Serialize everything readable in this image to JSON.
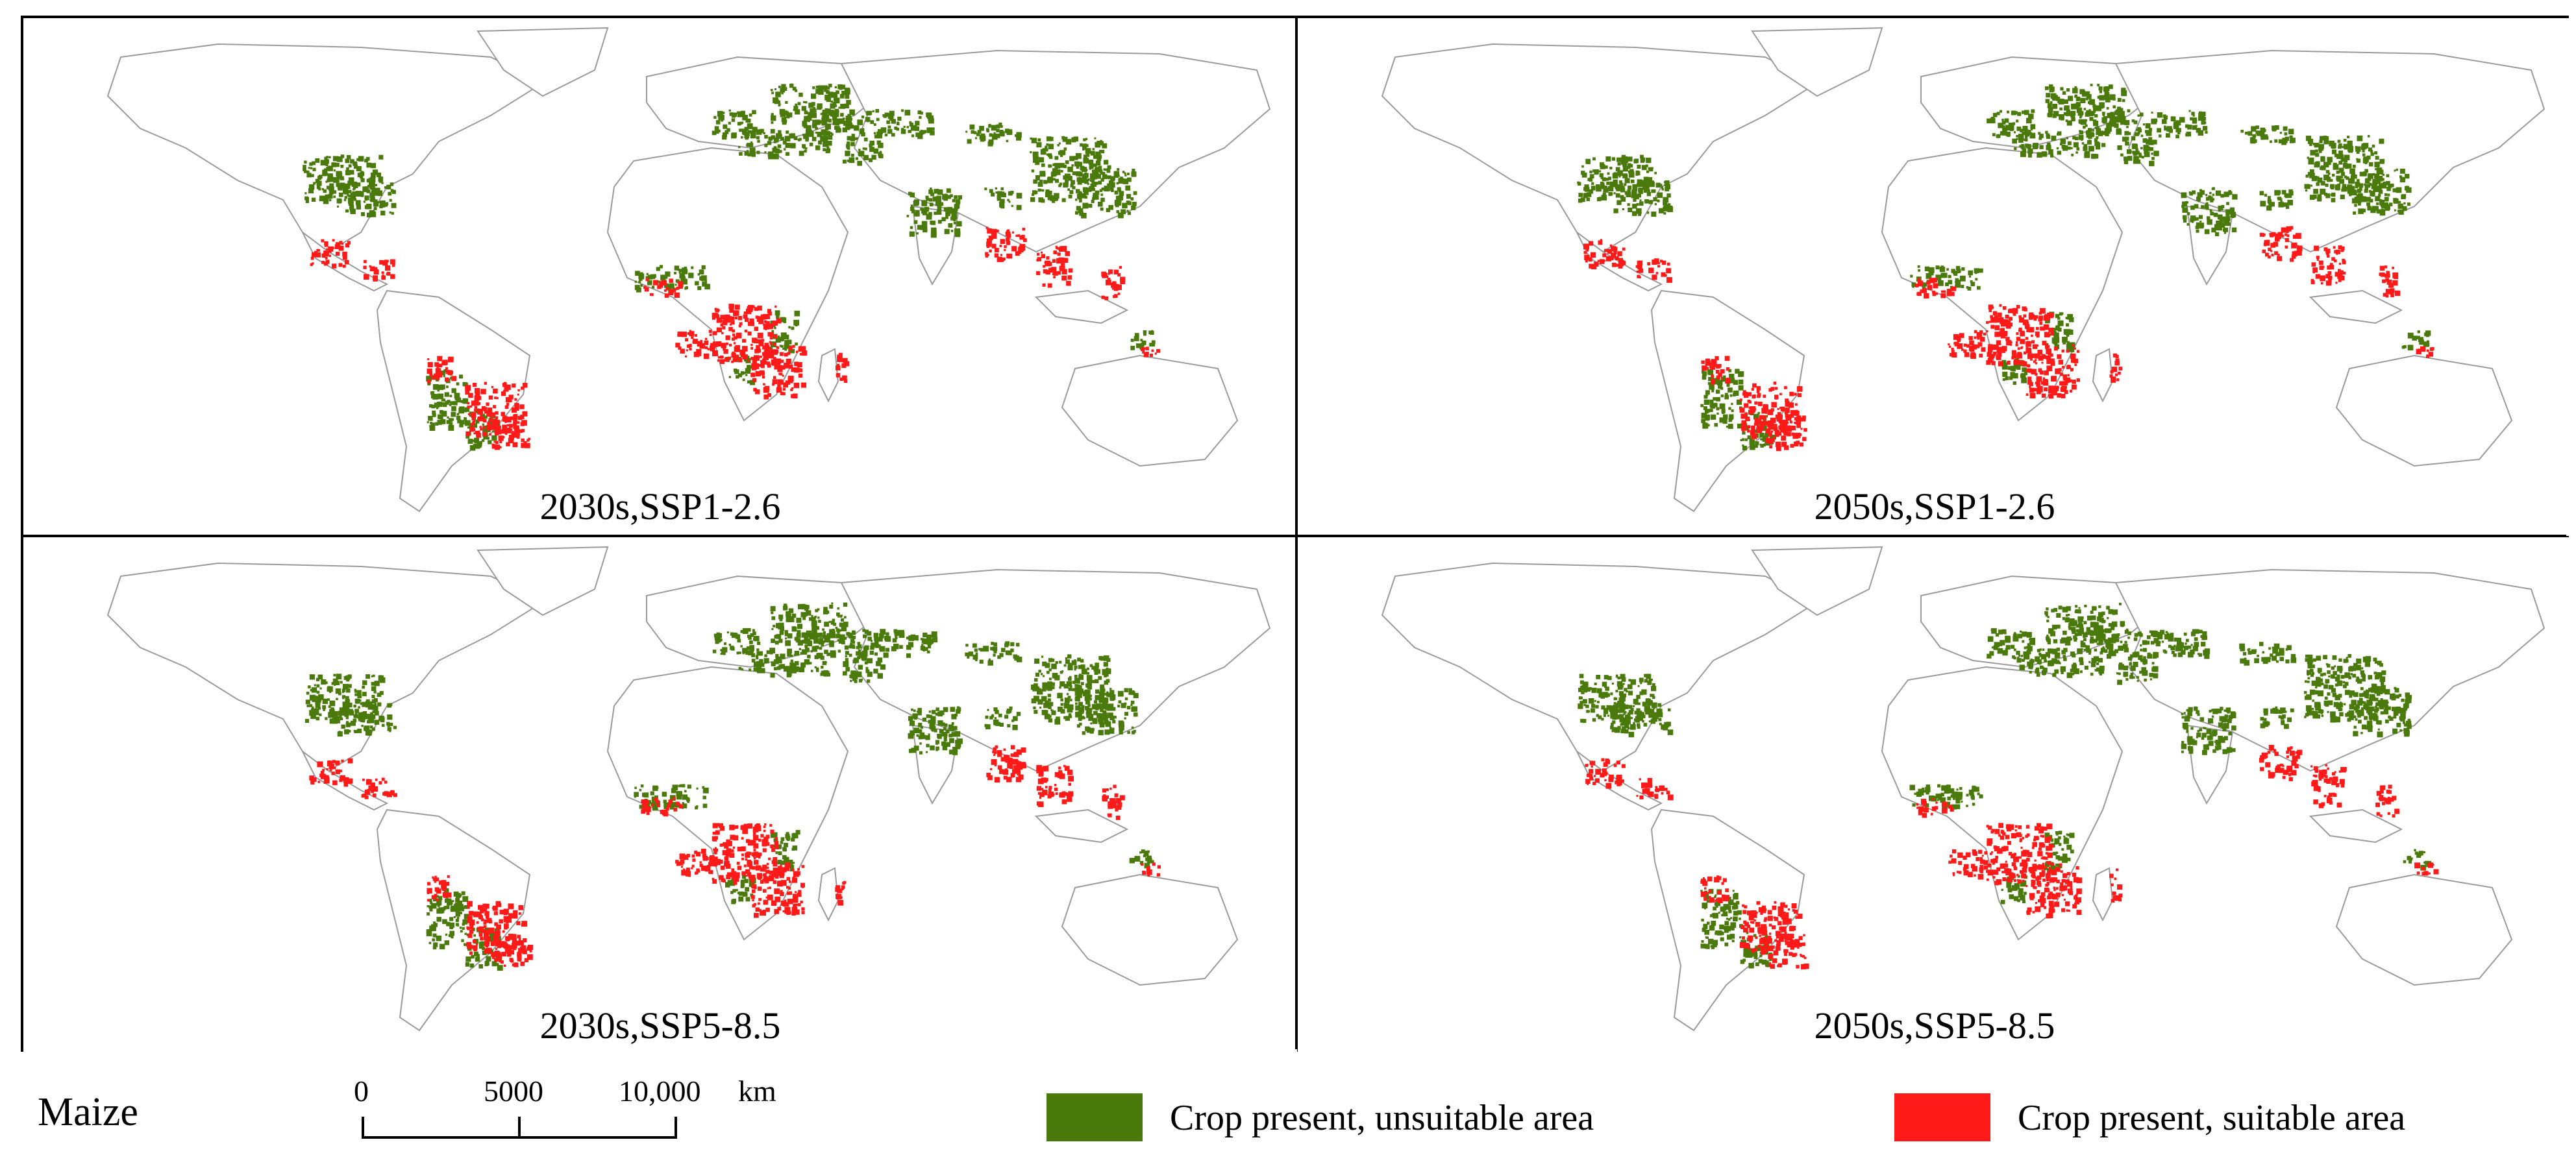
{
  "crop": "Maize",
  "colors": {
    "unsuitable": "#4a7a0c",
    "suitable": "#ff1a1a",
    "ocean": "#ffffff",
    "land_outline": "#9a9a9a",
    "frame": "#000000"
  },
  "panels": [
    {
      "label": "2030s,SSP1-2.6"
    },
    {
      "label": "2050s,SSP1-2.6"
    },
    {
      "label": "2030s,SSP5-8.5"
    },
    {
      "label": "2050s,SSP5-8.5"
    }
  ],
  "scalebar": {
    "ticks": [
      "0",
      "5000",
      "10,000"
    ],
    "unit": "km"
  },
  "legend": {
    "items": [
      {
        "key": "unsuitable",
        "label": "Crop present, unsuitable area"
      },
      {
        "key": "suitable",
        "label": "Crop present, suitable area"
      }
    ]
  }
}
